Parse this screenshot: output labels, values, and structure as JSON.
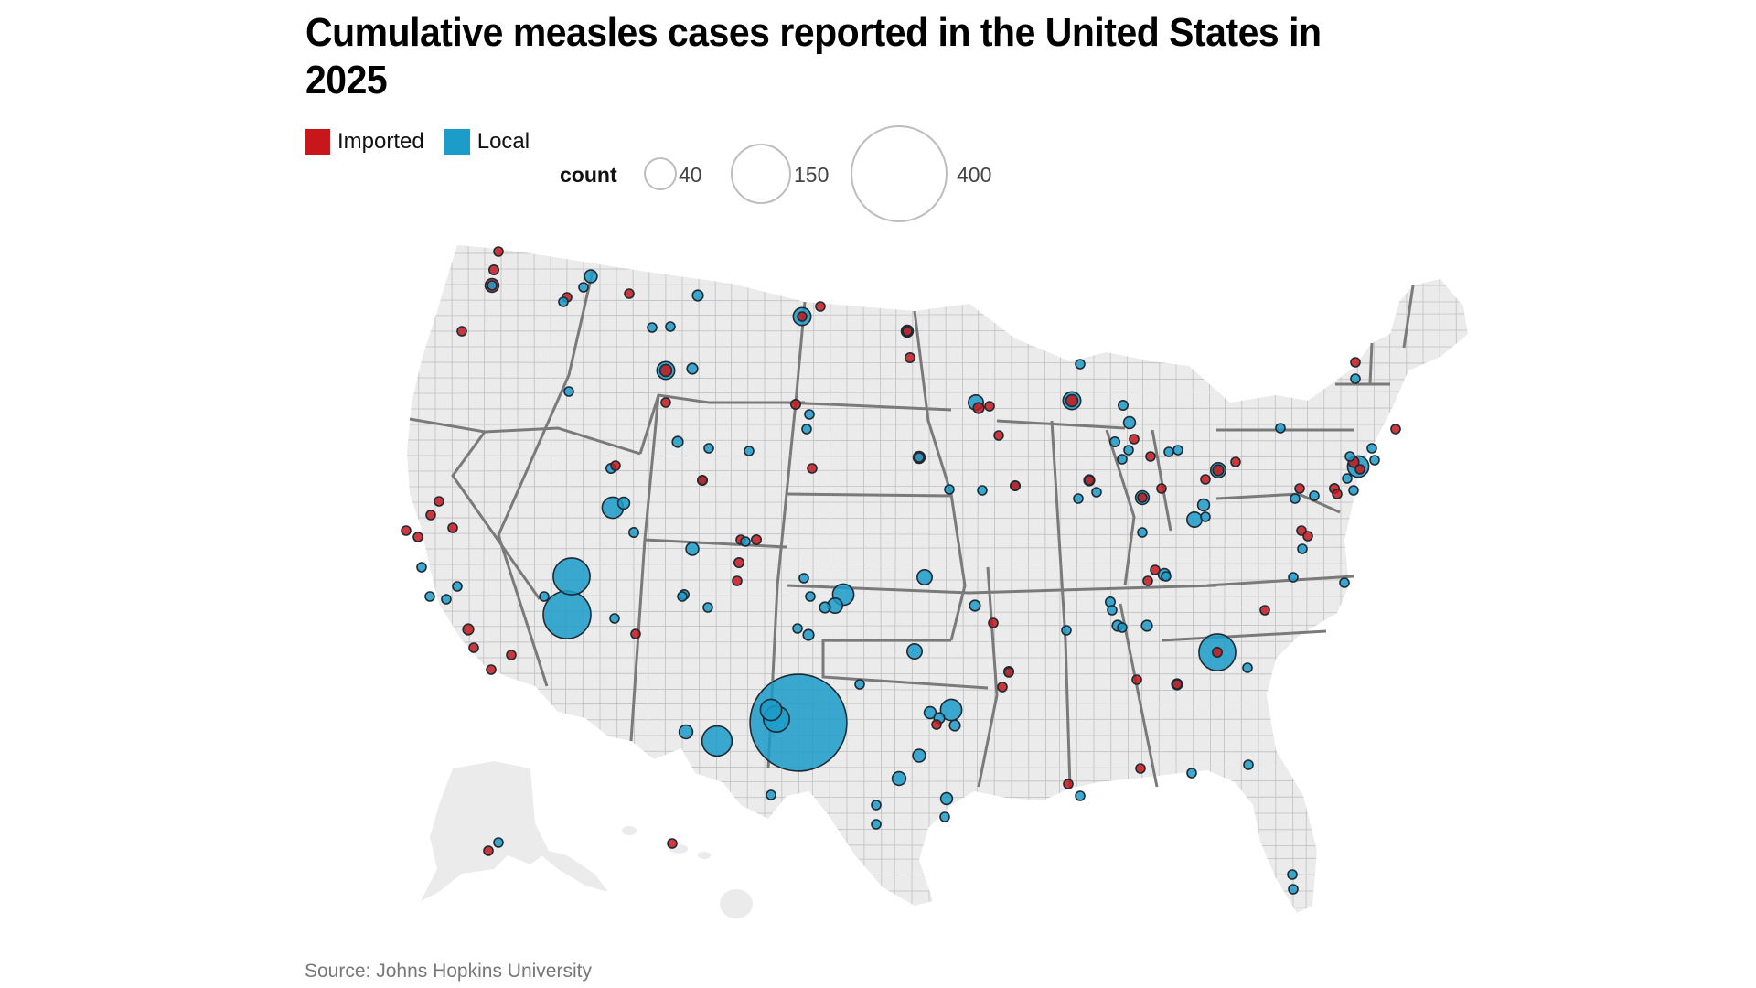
{
  "title": "Cumulative measles cases reported in the United States in 2025",
  "legend": {
    "categories": [
      {
        "label": "Imported",
        "color": "#c8161b"
      },
      {
        "label": "Local",
        "color": "#1b9cc9"
      }
    ],
    "size_title": "count",
    "size_steps": [
      40,
      150,
      400
    ]
  },
  "source": "Source: Johns Hopkins University",
  "colors": {
    "imported": "#c8161b",
    "local": "#1b9cc9",
    "land": "#ebebeb",
    "county_border": "#9a9a9a",
    "state_border": "#7a7a7a"
  },
  "chart_data": {
    "type": "bubble-map",
    "title": "Cumulative measles cases reported in the United States in 2025",
    "size_variable": "count",
    "color_variable": "type",
    "legend_placement": "top-left",
    "points": [
      {
        "region": "WA-north",
        "type": "Imported",
        "count": 3
      },
      {
        "region": "WA-north",
        "type": "Imported",
        "count": 4
      },
      {
        "region": "WA-seattle",
        "type": "Imported",
        "count": 8
      },
      {
        "region": "WA-seattle",
        "type": "Local",
        "count": 3
      },
      {
        "region": "OR-portland",
        "type": "Imported",
        "count": 3
      },
      {
        "region": "WA-spokane",
        "type": "Imported",
        "count": 2
      },
      {
        "region": "WA-spokane",
        "type": "Local",
        "count": 2
      },
      {
        "region": "ID-north",
        "type": "Local",
        "count": 7
      },
      {
        "region": "ID-north",
        "type": "Local",
        "count": 2
      },
      {
        "region": "MT-west",
        "type": "Imported",
        "count": 3
      },
      {
        "region": "MT-north",
        "type": "Local",
        "count": 5
      },
      {
        "region": "MT-central",
        "type": "Local",
        "count": 3
      },
      {
        "region": "MT-central",
        "type": "Local",
        "count": 2
      },
      {
        "region": "MT-south",
        "type": "Local",
        "count": 14
      },
      {
        "region": "MT-south",
        "type": "Imported",
        "count": 6
      },
      {
        "region": "MT-east",
        "type": "Local",
        "count": 5
      },
      {
        "region": "ID-boise",
        "type": "Local",
        "count": 3
      },
      {
        "region": "ID-east",
        "type": "Imported",
        "count": 3
      },
      {
        "region": "WY-north",
        "type": "Imported",
        "count": 2
      },
      {
        "region": "WY-central",
        "type": "Local",
        "count": 5
      },
      {
        "region": "WY-central",
        "type": "Local",
        "count": 2
      },
      {
        "region": "WY-east",
        "type": "Local",
        "count": 2
      },
      {
        "region": "WY-south",
        "type": "Local",
        "count": 4
      },
      {
        "region": "WY-south",
        "type": "Imported",
        "count": 2
      },
      {
        "region": "ND-west",
        "type": "Local",
        "count": 14
      },
      {
        "region": "ND-west",
        "type": "Imported",
        "count": 3
      },
      {
        "region": "ND-north",
        "type": "Imported",
        "count": 2
      },
      {
        "region": "ND-east",
        "type": "Local",
        "count": 6
      },
      {
        "region": "ND-east",
        "type": "Imported",
        "count": 3
      },
      {
        "region": "ND-east",
        "type": "Imported",
        "count": 4
      },
      {
        "region": "SD-west",
        "type": "Imported",
        "count": 4
      },
      {
        "region": "SD-west",
        "type": "Local",
        "count": 2
      },
      {
        "region": "SD-west",
        "type": "Local",
        "count": 2
      },
      {
        "region": "SD-east",
        "type": "Imported",
        "count": 6
      },
      {
        "region": "SD-east",
        "type": "Local",
        "count": 2
      },
      {
        "region": "NE-west",
        "type": "Imported",
        "count": 2
      },
      {
        "region": "UT-north",
        "type": "Local",
        "count": 4
      },
      {
        "region": "UT-saltlake",
        "type": "Local",
        "count": 20
      },
      {
        "region": "UT-saltlake",
        "type": "Local",
        "count": 6
      },
      {
        "region": "UT-south",
        "type": "Local",
        "count": 4
      },
      {
        "region": "UT-southwest",
        "type": "Local",
        "count": 60
      },
      {
        "region": "AZ-mohave",
        "type": "Local",
        "count": 100
      },
      {
        "region": "AZ-mohave",
        "type": "Local",
        "count": 2
      },
      {
        "region": "AZ-central",
        "type": "Local",
        "count": 2
      },
      {
        "region": "AZ-east",
        "type": "Imported",
        "count": 3
      },
      {
        "region": "CO-west",
        "type": "Local",
        "count": 7
      },
      {
        "region": "CO-denver",
        "type": "Imported",
        "count": 3
      },
      {
        "region": "CO-denver",
        "type": "Local",
        "count": 3
      },
      {
        "region": "CO-denver",
        "type": "Imported",
        "count": 4
      },
      {
        "region": "CO-south",
        "type": "Imported",
        "count": 4
      },
      {
        "region": "CO-south",
        "type": "Imported",
        "count": 2
      },
      {
        "region": "CO-southwest",
        "type": "Local",
        "count": 4
      },
      {
        "region": "CA-north",
        "type": "Imported",
        "count": 2
      },
      {
        "region": "CA-sacramento",
        "type": "Imported",
        "count": 2
      },
      {
        "region": "CA-sacramento",
        "type": "Imported",
        "count": 3
      },
      {
        "region": "CA-bayarea",
        "type": "Imported",
        "count": 2
      },
      {
        "region": "CA-bayarea",
        "type": "Imported",
        "count": 2
      },
      {
        "region": "CA-central",
        "type": "Local",
        "count": 2
      },
      {
        "region": "CA-central",
        "type": "Local",
        "count": 3
      },
      {
        "region": "CA-central",
        "type": "Local",
        "count": 2
      },
      {
        "region": "CA-central",
        "type": "Local",
        "count": 3
      },
      {
        "region": "CA-la",
        "type": "Imported",
        "count": 5
      },
      {
        "region": "CA-la",
        "type": "Imported",
        "count": 3
      },
      {
        "region": "CA-south",
        "type": "Imported",
        "count": 2
      },
      {
        "region": "CA-south",
        "type": "Imported",
        "count": 2
      },
      {
        "region": "NM-north",
        "type": "Local",
        "count": 3
      },
      {
        "region": "NM-north",
        "type": "Local",
        "count": 2
      },
      {
        "region": "NM-central",
        "type": "Local",
        "count": 3
      },
      {
        "region": "NM-central",
        "type": "Local",
        "count": 2
      },
      {
        "region": "NM-south",
        "type": "Local",
        "count": 8
      },
      {
        "region": "NM-lea",
        "type": "Local",
        "count": 40
      },
      {
        "region": "TX-gaines",
        "type": "Local",
        "count": 414
      },
      {
        "region": "TX-westpanhandle",
        "type": "Local",
        "count": 20
      },
      {
        "region": "TX-lubbock",
        "type": "Local",
        "count": 30
      },
      {
        "region": "TX-panhandle",
        "type": "Local",
        "count": 5
      },
      {
        "region": "TX-westcentral",
        "type": "Local",
        "count": 3
      },
      {
        "region": "TX-dallas",
        "type": "Local",
        "count": 20
      },
      {
        "region": "TX-dallas",
        "type": "Local",
        "count": 6
      },
      {
        "region": "TX-dallas",
        "type": "Local",
        "count": 5
      },
      {
        "region": "TX-east",
        "type": "Imported",
        "count": 2
      },
      {
        "region": "TX-east",
        "type": "Local",
        "count": 5
      },
      {
        "region": "TX-central",
        "type": "Local",
        "count": 7
      },
      {
        "region": "TX-austin",
        "type": "Local",
        "count": 8
      },
      {
        "region": "TX-sanantonio",
        "type": "Local",
        "count": 3
      },
      {
        "region": "TX-houston",
        "type": "Local",
        "count": 6
      },
      {
        "region": "TX-houston",
        "type": "Local",
        "count": 2
      },
      {
        "region": "TX-south",
        "type": "Local",
        "count": 2
      },
      {
        "region": "TX-bigbend",
        "type": "Local",
        "count": 2
      },
      {
        "region": "KS-southwest",
        "type": "Local",
        "count": 20
      },
      {
        "region": "KS-southwest",
        "type": "Local",
        "count": 10
      },
      {
        "region": "KS-southwest",
        "type": "Local",
        "count": 5
      },
      {
        "region": "KS-central",
        "type": "Local",
        "count": 10
      },
      {
        "region": "OK-central",
        "type": "Local",
        "count": 10
      },
      {
        "region": "OK-west",
        "type": "Local",
        "count": 3
      },
      {
        "region": "MO-west",
        "type": "Local",
        "count": 5
      },
      {
        "region": "MO-central",
        "type": "Imported",
        "count": 2
      },
      {
        "region": "AR-central",
        "type": "Local",
        "count": 4
      },
      {
        "region": "AR-central",
        "type": "Imported",
        "count": 2
      },
      {
        "region": "AR-central",
        "type": "Imported",
        "count": 2
      },
      {
        "region": "MN-minneapolis",
        "type": "Local",
        "count": 10
      },
      {
        "region": "MN-minneapolis",
        "type": "Imported",
        "count": 5
      },
      {
        "region": "MN-minneapolis",
        "type": "Imported",
        "count": 3
      },
      {
        "region": "MN-south",
        "type": "Imported",
        "count": 2
      },
      {
        "region": "IA-central",
        "type": "Local",
        "count": 2
      },
      {
        "region": "IA-central",
        "type": "Local",
        "count": 2
      },
      {
        "region": "IA-east",
        "type": "Local",
        "count": 4
      },
      {
        "region": "IA-east",
        "type": "Imported",
        "count": 2
      },
      {
        "region": "WI-north",
        "type": "Local",
        "count": 2
      },
      {
        "region": "WI-central",
        "type": "Local",
        "count": 14
      },
      {
        "region": "WI-central",
        "type": "Imported",
        "count": 6
      },
      {
        "region": "IL-chicago",
        "type": "Local",
        "count": 5
      },
      {
        "region": "IL-chicago",
        "type": "Imported",
        "count": 3
      },
      {
        "region": "IL-chicago",
        "type": "Local",
        "count": 3
      },
      {
        "region": "IL-central",
        "type": "Local",
        "count": 2
      },
      {
        "region": "IL-south",
        "type": "Local",
        "count": 4
      },
      {
        "region": "MI-north",
        "type": "Local",
        "count": 4
      },
      {
        "region": "MI-central",
        "type": "Local",
        "count": 6
      },
      {
        "region": "MI-west",
        "type": "Local",
        "count": 4
      },
      {
        "region": "MI-west",
        "type": "Local",
        "count": 3
      },
      {
        "region": "MI-west",
        "type": "Imported",
        "count": 2
      },
      {
        "region": "MI-southwest",
        "type": "Local",
        "count": 2
      },
      {
        "region": "MI-southeast",
        "type": "Imported",
        "count": 2
      },
      {
        "region": "MI-detroit",
        "type": "Local",
        "count": 2
      },
      {
        "region": "MI-detroit",
        "type": "Local",
        "count": 2
      },
      {
        "region": "IN-north",
        "type": "Local",
        "count": 8
      },
      {
        "region": "IN-north",
        "type": "Imported",
        "count": 2
      },
      {
        "region": "IN-east",
        "type": "Imported",
        "count": 2
      },
      {
        "region": "IN-south",
        "type": "Local",
        "count": 2
      },
      {
        "region": "OH-north",
        "type": "Imported",
        "count": 2
      },
      {
        "region": "OH-cleveland",
        "type": "Local",
        "count": 10
      },
      {
        "region": "OH-cleveland",
        "type": "Imported",
        "count": 5
      },
      {
        "region": "OH-cleveland",
        "type": "Imported",
        "count": 3
      },
      {
        "region": "OH-columbus",
        "type": "Local",
        "count": 10
      },
      {
        "region": "OH-columbus",
        "type": "Local",
        "count": 6
      },
      {
        "region": "OH-columbus",
        "type": "Local",
        "count": 3
      },
      {
        "region": "KY-central",
        "type": "Local",
        "count": 6
      },
      {
        "region": "KY-central",
        "type": "Imported",
        "count": 2
      },
      {
        "region": "KY-central",
        "type": "Imported",
        "count": 2
      },
      {
        "region": "KY-central",
        "type": "Local",
        "count": 2
      },
      {
        "region": "TN-nashville",
        "type": "Local",
        "count": 5
      },
      {
        "region": "TN-nashville",
        "type": "Local",
        "count": 3
      },
      {
        "region": "TN-east",
        "type": "Local",
        "count": 5
      },
      {
        "region": "TN-north",
        "type": "Local",
        "count": 2
      },
      {
        "region": "TN-memphis",
        "type": "Local",
        "count": 2
      },
      {
        "region": "NC-central",
        "type": "Imported",
        "count": 2
      },
      {
        "region": "GA-north",
        "type": "Local",
        "count": 60
      },
      {
        "region": "GA-north",
        "type": "Imported",
        "count": 4
      },
      {
        "region": "GA-north",
        "type": "Local",
        "count": 3
      },
      {
        "region": "GA-atlanta",
        "type": "Local",
        "count": 5
      },
      {
        "region": "GA-atlanta",
        "type": "Imported",
        "count": 3
      },
      {
        "region": "GA-south",
        "type": "Local",
        "count": 2
      },
      {
        "region": "AL-north",
        "type": "Imported",
        "count": 2
      },
      {
        "region": "AL-south",
        "type": "Imported",
        "count": 2
      },
      {
        "region": "LA-south",
        "type": "Imported",
        "count": 2
      },
      {
        "region": "LA-south",
        "type": "Local",
        "count": 2
      },
      {
        "region": "FL-north",
        "type": "Local",
        "count": 2
      },
      {
        "region": "FL-south",
        "type": "Local",
        "count": 3
      },
      {
        "region": "FL-south",
        "type": "Local",
        "count": 2
      },
      {
        "region": "PA-central",
        "type": "Imported",
        "count": 2
      },
      {
        "region": "PA-central",
        "type": "Local",
        "count": 2
      },
      {
        "region": "PA-central",
        "type": "Local",
        "count": 3
      },
      {
        "region": "PA-philadelphia",
        "type": "Imported",
        "count": 4
      },
      {
        "region": "PA-philadelphia",
        "type": "Imported",
        "count": 3
      },
      {
        "region": "NJ-newyork",
        "type": "Local",
        "count": 20
      },
      {
        "region": "NJ-newyork",
        "type": "Imported",
        "count": 5
      },
      {
        "region": "NJ-newyork",
        "type": "Imported",
        "count": 3
      },
      {
        "region": "NJ-newyork",
        "type": "Local",
        "count": 3
      },
      {
        "region": "NJ-newyork",
        "type": "Local",
        "count": 2
      },
      {
        "region": "NY-longisland",
        "type": "Local",
        "count": 2
      },
      {
        "region": "NY-longisland",
        "type": "Local",
        "count": 2
      },
      {
        "region": "NJ-south",
        "type": "Local",
        "count": 2
      },
      {
        "region": "NY-upstate",
        "type": "Local",
        "count": 2
      },
      {
        "region": "VT",
        "type": "Imported",
        "count": 2
      },
      {
        "region": "VT",
        "type": "Local",
        "count": 2
      },
      {
        "region": "MA-boston",
        "type": "Imported",
        "count": 2
      },
      {
        "region": "MD-baltimore",
        "type": "Imported",
        "count": 3
      },
      {
        "region": "MD-baltimore",
        "type": "Imported",
        "count": 2
      },
      {
        "region": "VA-north",
        "type": "Local",
        "count": 2
      },
      {
        "region": "VA-central",
        "type": "Local",
        "count": 2
      },
      {
        "region": "VA-east",
        "type": "Local",
        "count": 2
      },
      {
        "region": "AK-anchorage",
        "type": "Local",
        "count": 2
      },
      {
        "region": "AK-south",
        "type": "Imported",
        "count": 2
      },
      {
        "region": "HI",
        "type": "Imported",
        "count": 2
      }
    ]
  }
}
